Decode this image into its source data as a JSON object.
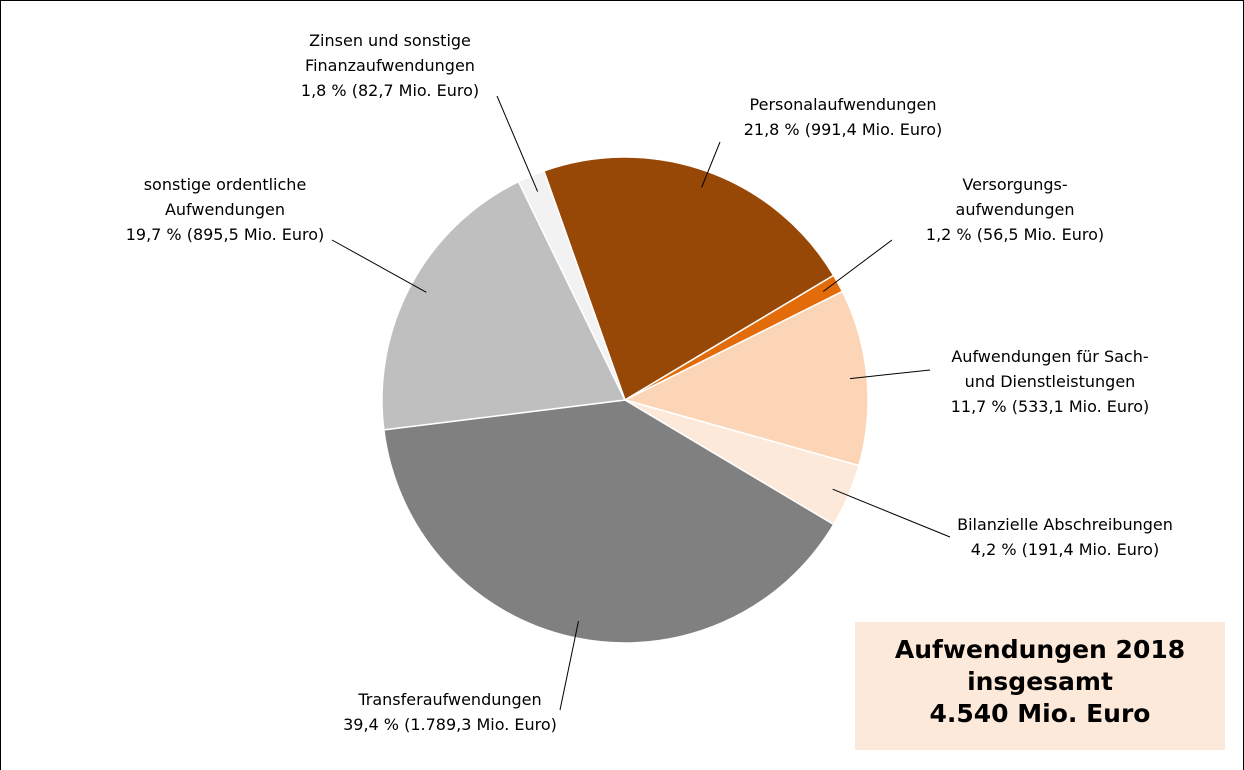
{
  "chart_data": {
    "type": "pie",
    "categories": [
      [
        "Personalaufwendungen"
      ],
      [
        "Versorgungs-",
        "aufwendungen"
      ],
      [
        "Aufwendungen für Sach-",
        "und Dienstleistungen"
      ],
      [
        "Bilanzielle Abschreibungen"
      ],
      [
        "Transferaufwendungen"
      ],
      [
        "sonstige ordentliche",
        "Aufwendungen"
      ],
      [
        "Zinsen und sonstige",
        "Finanzaufwendungen"
      ]
    ],
    "values": [
      21.8,
      1.2,
      11.7,
      4.2,
      39.4,
      19.7,
      1.8
    ],
    "value_labels": [
      "21,8 % (991,4 Mio. Euro)",
      "1,2 % (56,5 Mio. Euro)",
      "11,7 % (533,1 Mio. Euro)",
      "4,2 % (191,4 Mio. Euro)",
      "39,4 % (1.789,3 Mio. Euro)",
      "19,7 % (895,5 Mio. Euro)",
      "1,8 % (82,7 Mio. Euro)"
    ],
    "colors": [
      "#974706",
      "#e36c0a",
      "#fbd5b5",
      "#fde9d9",
      "#808080",
      "#bfbfbf",
      "#f2f2f2"
    ],
    "total_box": [
      "Aufwendungen 2018",
      "insgesamt",
      "4.540 Mio. Euro"
    ]
  }
}
